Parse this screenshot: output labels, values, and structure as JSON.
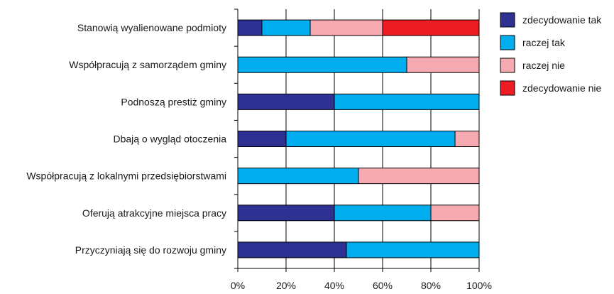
{
  "chart_data": {
    "type": "bar",
    "orientation": "horizontal",
    "stacked": true,
    "percent": true,
    "categories": [
      "Stanowią wyalienowane podmioty",
      "Współpracują z samorządem gminy",
      "Podnoszą prestiż gminy",
      "Dbają o wygląd otoczenia",
      "Współpracują z lokalnymi przedsiębiorstwami",
      "Oferują atrakcyjne miejsca pracy",
      "Przyczyniają się do rozwoju gminy"
    ],
    "series": [
      {
        "name": "zdecydowanie tak",
        "color": "#2e3192",
        "values": [
          10,
          0,
          40,
          20,
          0,
          40,
          45
        ]
      },
      {
        "name": "raczej tak",
        "color": "#00aeef",
        "values": [
          20,
          70,
          60,
          70,
          50,
          40,
          55
        ]
      },
      {
        "name": "raczej nie",
        "color": "#f5a9b0",
        "values": [
          30,
          30,
          0,
          10,
          50,
          20,
          0
        ]
      },
      {
        "name": "zdecydowanie nie",
        "color": "#ed1c24",
        "values": [
          40,
          0,
          0,
          0,
          0,
          0,
          0
        ]
      }
    ],
    "xlim": [
      0,
      100
    ],
    "xticks": [
      "0%",
      "20%",
      "40%",
      "60%",
      "80%",
      "100%"
    ],
    "grid": true,
    "legend": "top-right",
    "title": "",
    "xlabel": "",
    "ylabel": ""
  }
}
